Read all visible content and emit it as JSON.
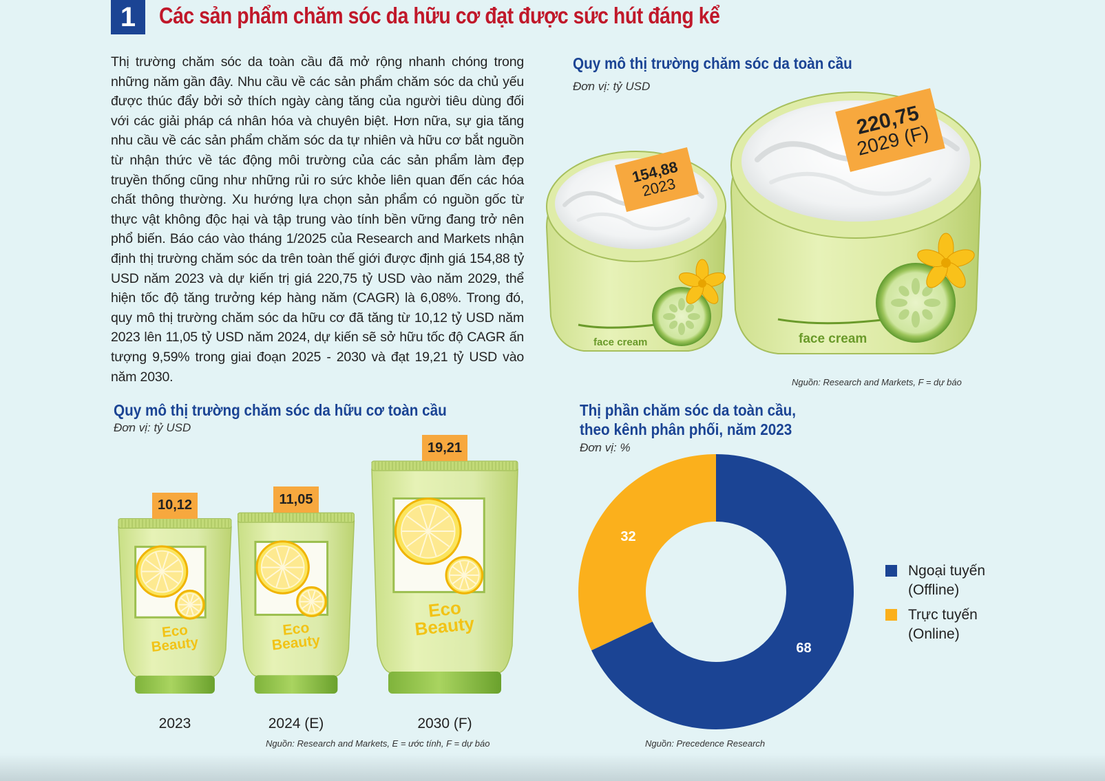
{
  "header": {
    "number": "1",
    "title": "Các sản phẩm chăm sóc da hữu cơ đạt được sức hút đáng kể"
  },
  "body_text": "Thị trường chăm sóc da toàn cầu đã mở rộng nhanh chóng trong những năm gần đây. Nhu cầu về các sản phẩm chăm sóc da chủ yếu được thúc đẩy bởi sở thích ngày càng tăng của người tiêu dùng đối với các giải pháp cá nhân hóa và chuyên biệt. Hơn nữa, sự gia tăng nhu cầu về các sản phẩm chăm sóc da tự nhiên và hữu cơ bắt nguồn từ nhận thức về tác động môi trường của các sản phẩm làm đẹp truyền thống cũng như những rủi ro sức khỏe liên quan đến các hóa chất thông thường. Xu hướng lựa chọn sản phẩm có nguồn gốc từ thực vật không độc hại và tập trung vào tính bền vững đang trở nên phổ biến. Báo cáo vào tháng 1/2025 của Research and Markets nhận định thị trường chăm sóc da trên toàn thế giới được định giá 154,88 tỷ USD năm 2023 và dự kiến trị giá 220,75 tỷ USD vào năm 2029, thể hiện tốc độ tăng trưởng kép hàng năm (CAGR) là 6,08%. Trong đó, quy mô thị trường chăm sóc da hữu cơ đã tăng từ 10,12 tỷ USD năm 2023 lên 11,05 tỷ USD năm 2024, dự kiến sẽ sở hữu tốc độ CAGR ấn tượng 9,59% trong giai đoạn 2025 - 2030 và đạt 19,21 tỷ USD vào năm 2030.",
  "colors": {
    "accent_red": "#c0182a",
    "accent_blue": "#1b4494",
    "tag_orange": "#f7a83e",
    "offline": "#1b4494",
    "online": "#fbb01c"
  },
  "chart_data": [
    {
      "type": "bar",
      "title": "Quy mô thị trường chăm sóc da toàn cầu",
      "unit": "Đơn vị: tỷ USD",
      "categories": [
        "2023",
        "2029 (F)"
      ],
      "values": [
        154.88,
        220.75
      ],
      "value_labels": [
        "154,88",
        "220,75"
      ],
      "source": "Nguồn: Research and Markets, F = dự báo",
      "product_label": "face cream",
      "icons": [
        "cream-jar-icon",
        "cucumber-icon",
        "yellow-flower-icon"
      ]
    },
    {
      "type": "bar",
      "title": "Quy mô thị trường chăm sóc da hữu cơ toàn cầu",
      "unit": "Đơn vị: tỷ USD",
      "categories": [
        "2023",
        "2024 (E)",
        "2030 (F)"
      ],
      "values": [
        10.12,
        11.05,
        19.21
      ],
      "value_labels": [
        "10,12",
        "11,05",
        "19,21"
      ],
      "source": "Nguồn: Research and Markets, E = ước tính, F = dự báo",
      "product_brand": [
        "Eco",
        "Beauty"
      ],
      "icons": [
        "cosmetic-tube-icon",
        "lemon-slice-icon"
      ]
    },
    {
      "type": "pie",
      "title_lines": [
        "Thị phần chăm sóc da toàn cầu,",
        "theo kênh phân phối, năm 2023"
      ],
      "unit": "Đơn vị: %",
      "series": [
        {
          "name": "Ngoại tuyến (Offline)",
          "name_lines": [
            "Ngoại tuyến",
            "(Offline)"
          ],
          "value": 68,
          "color": "#1b4494"
        },
        {
          "name": "Trực tuyến (Online)",
          "name_lines": [
            "Trực tuyến",
            "(Online)"
          ],
          "value": 32,
          "color": "#fbb01c"
        }
      ],
      "donut": true,
      "legend": "right",
      "source": "Nguồn: Precedence Research"
    }
  ]
}
